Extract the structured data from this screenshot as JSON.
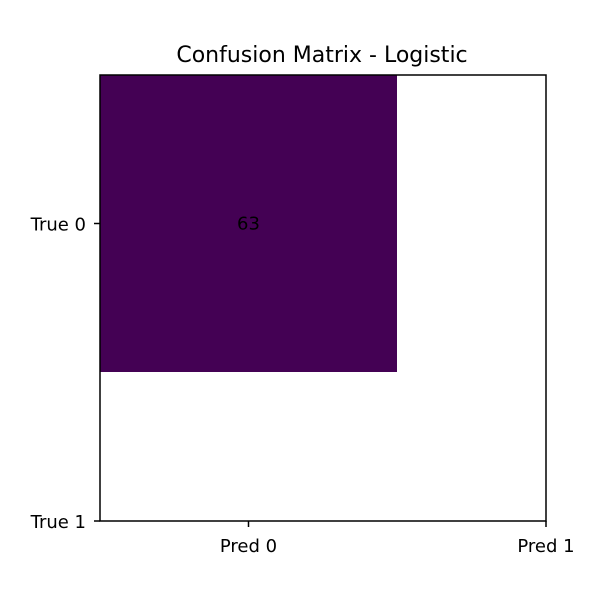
{
  "chart_data": {
    "type": "heatmap",
    "title": "Confusion Matrix - Logistic",
    "xlabel": "",
    "ylabel": "",
    "x_tick_labels": [
      "Pred 0",
      "Pred 1"
    ],
    "y_tick_labels": [
      "True 0",
      "True 1"
    ],
    "cells": [
      {
        "row": 0,
        "col": 0,
        "value": 63,
        "label": "63",
        "color": "#440154"
      }
    ],
    "grid": false
  }
}
